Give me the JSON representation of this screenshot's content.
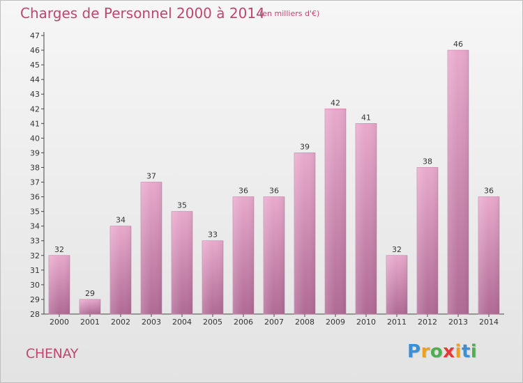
{
  "header": {
    "title": "Charges de Personnel 2000 à 2014",
    "subtitle": "(en milliers d'€)"
  },
  "footer": {
    "commune": "CHENAY",
    "logo": [
      "P",
      "r",
      "o",
      "x",
      "i",
      "t",
      "i"
    ],
    "logo_colors": [
      "#3a8fd6",
      "#f0a020",
      "#4caf50",
      "#e53935",
      "#f0a020",
      "#3a8fd6",
      "#4caf50"
    ]
  },
  "chart_data": {
    "type": "bar",
    "categories": [
      "2000",
      "2001",
      "2002",
      "2003",
      "2004",
      "2005",
      "2006",
      "2007",
      "2008",
      "2009",
      "2010",
      "2011",
      "2012",
      "2013",
      "2014"
    ],
    "values": [
      32,
      29,
      34,
      37,
      35,
      33,
      36,
      36,
      39,
      42,
      41,
      32,
      38,
      46,
      36
    ],
    "title": "Charges de Personnel 2000 à 2014",
    "subtitle": "(en milliers d'€)",
    "ylim": [
      28,
      47
    ],
    "yticks": [
      28,
      29,
      30,
      31,
      32,
      33,
      34,
      35,
      36,
      37,
      38,
      39,
      40,
      41,
      42,
      43,
      44,
      45,
      46,
      47
    ],
    "grid": false,
    "bar_color": "#d98ab5"
  }
}
